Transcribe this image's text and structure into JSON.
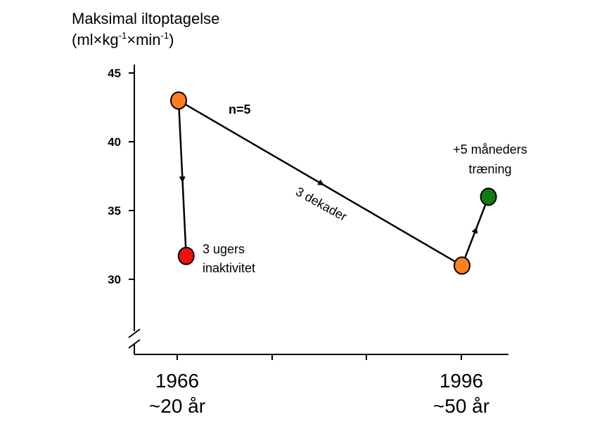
{
  "chart_data": {
    "type": "scatter",
    "ylabel_line1": "Maksimal iltoptagelse",
    "ylabel_unit": {
      "open": "(ml",
      "times1": "×",
      "kg": "kg",
      "exp1": "-1",
      "times2": "×",
      "min": "min",
      "exp2": "-1",
      "close": ")"
    },
    "ylim": [
      25,
      46
    ],
    "yticks": [
      30,
      35,
      40,
      45
    ],
    "x_categories": [
      {
        "year": "1966",
        "age": "~20 år"
      },
      {
        "year": "1996",
        "age": "~50 år"
      }
    ],
    "points": [
      {
        "id": "1966-baseline",
        "x": 1966.0,
        "y": 43.0,
        "color": "#ff7f1e"
      },
      {
        "id": "1966-inactivity",
        "x": 1966.8,
        "y": 31.7,
        "color": "#ee1111"
      },
      {
        "id": "1996-baseline",
        "x": 1996.0,
        "y": 31.0,
        "color": "#ff7f1e"
      },
      {
        "id": "1996-training",
        "x": 1998.8,
        "y": 36.0,
        "color": "#117a11"
      }
    ],
    "arrows": [
      {
        "from": "1966-baseline",
        "to": "1966-inactivity"
      },
      {
        "from": "1966-baseline",
        "to": "1996-baseline"
      },
      {
        "from": "1996-baseline",
        "to": "1996-training"
      }
    ],
    "annotations": {
      "n": "n=5",
      "decades": "3 dekader",
      "inactivity_line1": "3 ugers",
      "inactivity_line2": "inaktivitet",
      "training_line1": "+5 måneders",
      "training_line2": "træning"
    }
  }
}
